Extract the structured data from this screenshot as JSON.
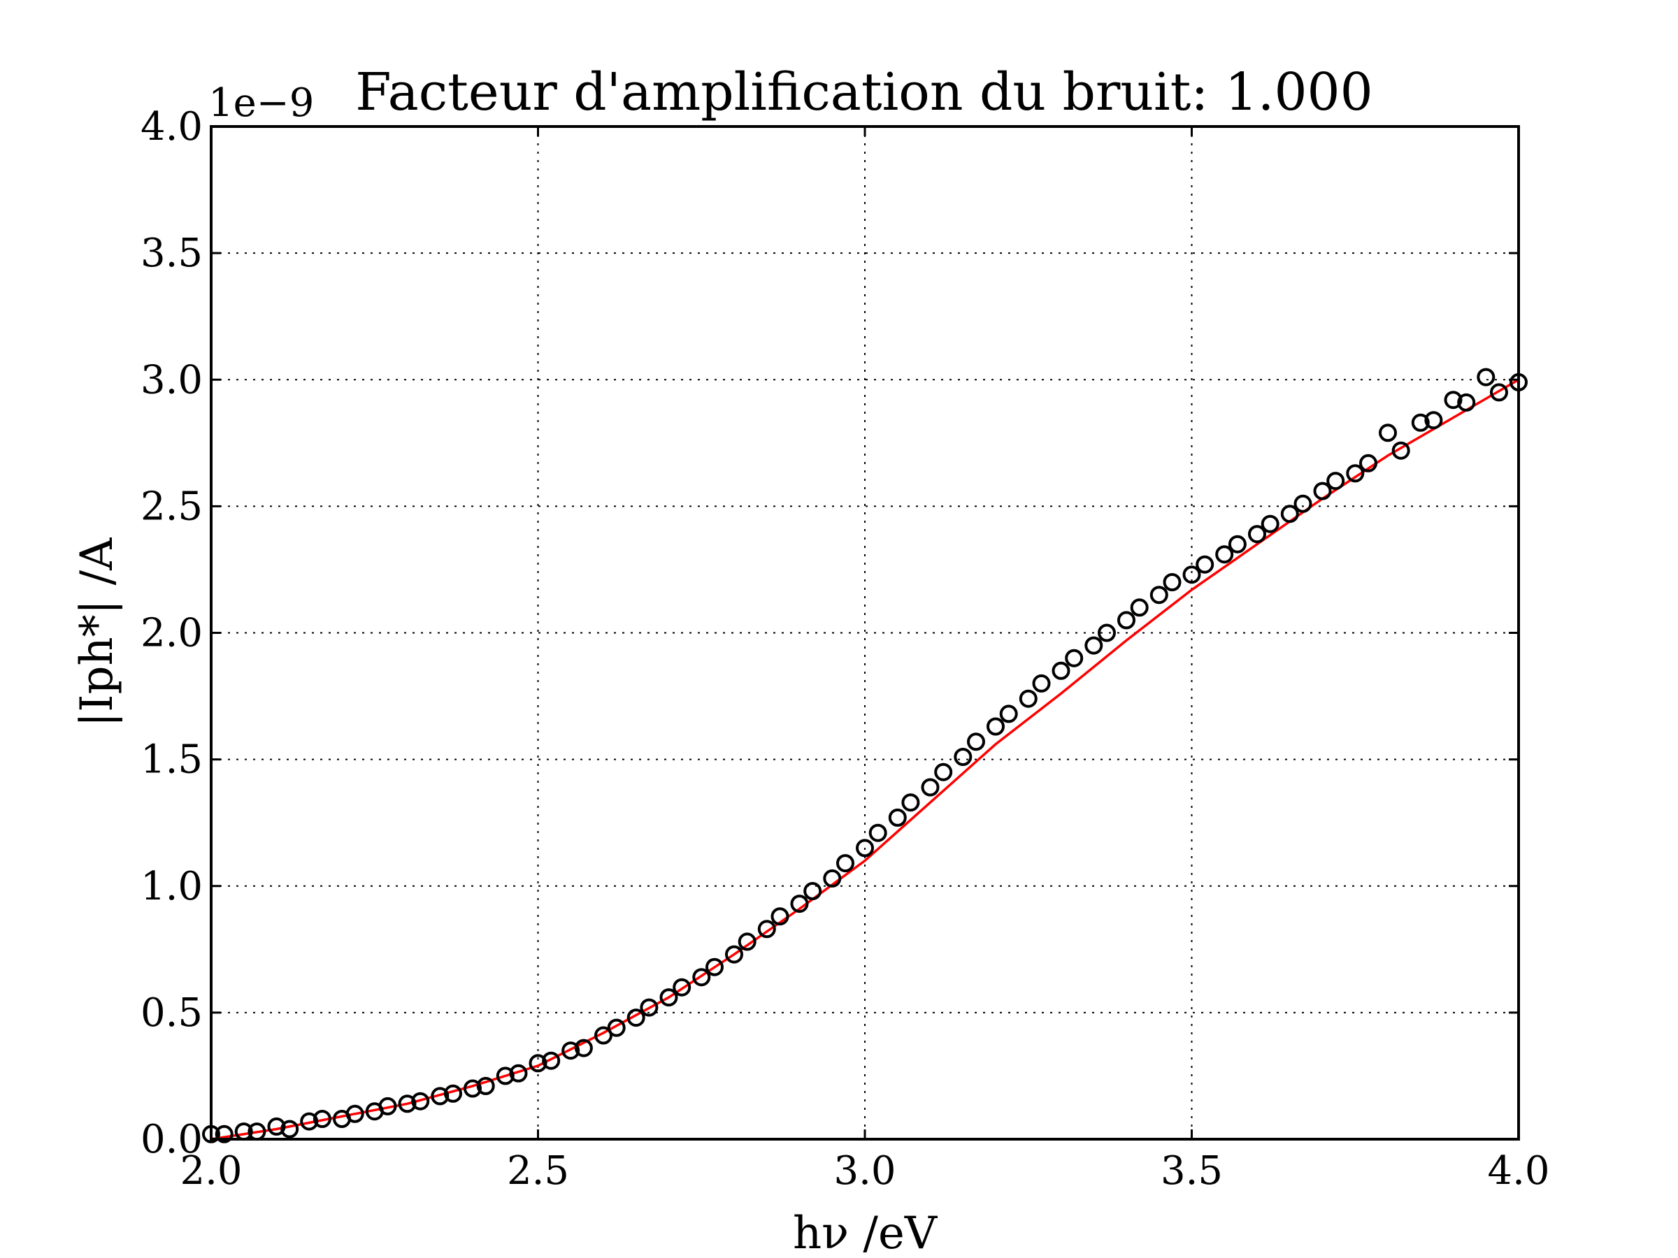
{
  "chart_data": {
    "type": "scatter",
    "title": "Facteur d'amplification du bruit: 1.000",
    "xlabel": "hν /eV",
    "ylabel": "|Iph*| /A",
    "y_offset_label": "1e−9",
    "xlim": [
      2.0,
      4.0
    ],
    "ylim": [
      0.0,
      4.0
    ],
    "x_ticks": [
      "2.0",
      "2.5",
      "3.0",
      "3.5",
      "4.0"
    ],
    "y_ticks": [
      "0.0",
      "0.5",
      "1.0",
      "1.5",
      "2.0",
      "2.5",
      "3.0",
      "3.5",
      "4.0"
    ],
    "grid": true,
    "colors": {
      "markers": "#000000",
      "fit_line": "#ff0000"
    },
    "series": [
      {
        "style": "open-circle markers",
        "x": [
          2.0,
          2.02,
          2.05,
          2.07,
          2.1,
          2.12,
          2.15,
          2.17,
          2.2,
          2.22,
          2.25,
          2.27,
          2.3,
          2.32,
          2.35,
          2.37,
          2.4,
          2.42,
          2.45,
          2.47,
          2.5,
          2.52,
          2.55,
          2.57,
          2.6,
          2.62,
          2.65,
          2.67,
          2.7,
          2.72,
          2.75,
          2.77,
          2.8,
          2.82,
          2.85,
          2.87,
          2.9,
          2.92,
          2.95,
          2.97,
          3.0,
          3.02,
          3.05,
          3.07,
          3.1,
          3.12,
          3.15,
          3.17,
          3.2,
          3.22,
          3.25,
          3.27,
          3.3,
          3.32,
          3.35,
          3.37,
          3.4,
          3.42,
          3.45,
          3.47,
          3.5,
          3.52,
          3.55,
          3.57,
          3.6,
          3.62,
          3.65,
          3.67,
          3.7,
          3.72,
          3.75,
          3.77,
          3.8,
          3.82,
          3.85,
          3.87,
          3.9,
          3.92,
          3.95,
          3.97,
          4.0
        ],
        "y": [
          0.02,
          0.02,
          0.03,
          0.03,
          0.05,
          0.04,
          0.07,
          0.08,
          0.08,
          0.1,
          0.11,
          0.13,
          0.14,
          0.15,
          0.17,
          0.18,
          0.2,
          0.21,
          0.25,
          0.26,
          0.3,
          0.31,
          0.35,
          0.36,
          0.41,
          0.44,
          0.48,
          0.52,
          0.56,
          0.6,
          0.64,
          0.68,
          0.73,
          0.78,
          0.83,
          0.88,
          0.93,
          0.98,
          1.03,
          1.09,
          1.15,
          1.21,
          1.27,
          1.33,
          1.39,
          1.45,
          1.51,
          1.57,
          1.63,
          1.68,
          1.74,
          1.8,
          1.85,
          1.9,
          1.95,
          2.0,
          2.05,
          2.1,
          2.15,
          2.2,
          2.23,
          2.27,
          2.31,
          2.35,
          2.39,
          2.43,
          2.47,
          2.51,
          2.56,
          2.6,
          2.63,
          2.67,
          2.79,
          2.72,
          2.83,
          2.84,
          2.92,
          2.91,
          3.01,
          2.95,
          2.99
        ]
      },
      {
        "style": "solid red line",
        "x": [
          2.0,
          2.1,
          2.2,
          2.3,
          2.4,
          2.5,
          2.6,
          2.7,
          2.8,
          2.9,
          3.0,
          3.1,
          3.2,
          3.3,
          3.4,
          3.5,
          3.6,
          3.7,
          3.8,
          3.9,
          4.0
        ],
        "y": [
          0.0,
          0.04,
          0.09,
          0.14,
          0.21,
          0.29,
          0.42,
          0.56,
          0.73,
          0.91,
          1.1,
          1.33,
          1.56,
          1.76,
          1.97,
          2.17,
          2.35,
          2.53,
          2.7,
          2.85,
          3.0
        ]
      }
    ]
  }
}
